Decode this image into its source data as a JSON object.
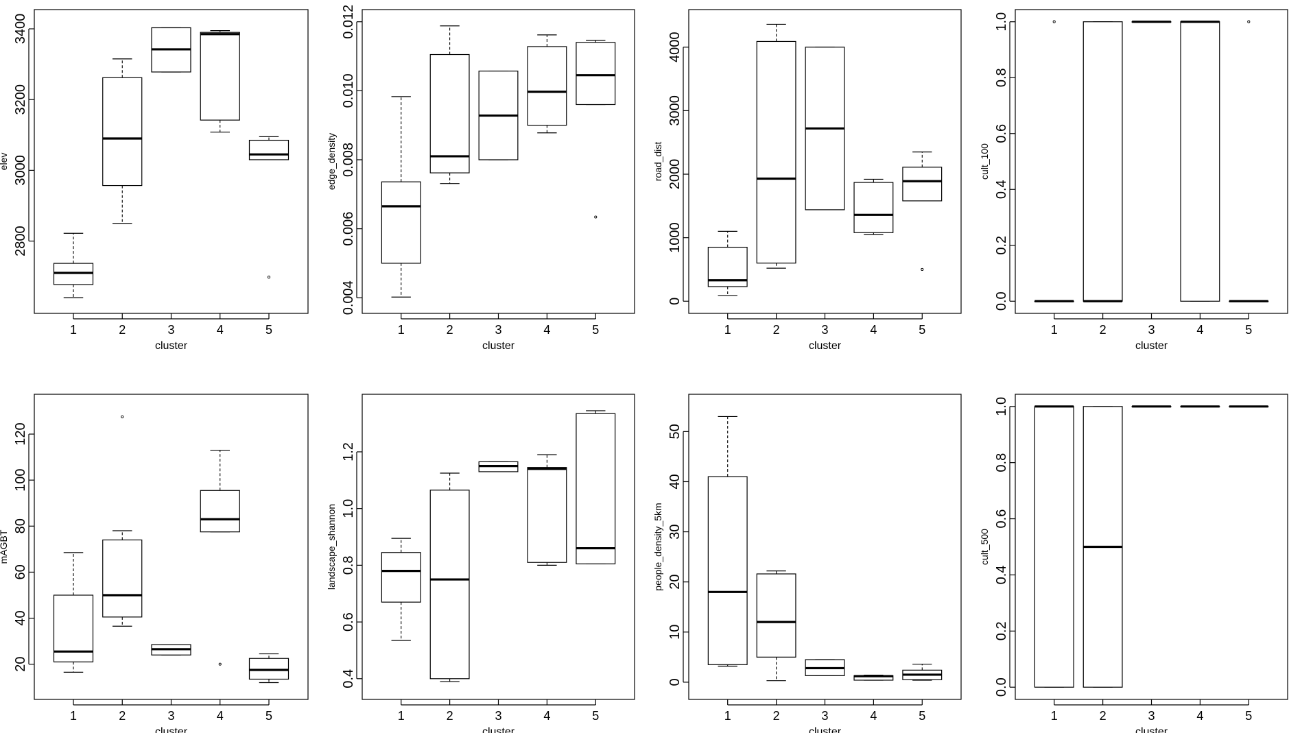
{
  "chart_data": [
    {
      "type": "boxplot",
      "xlabel": "cluster",
      "ylabel": "elev",
      "categories": [
        "1",
        "2",
        "3",
        "4",
        "5"
      ],
      "ylim": [
        2630,
        3420
      ],
      "yticks": [
        2800,
        3000,
        3200,
        3400
      ],
      "ytick_labels": [
        "2800",
        "3000",
        "3200",
        "3400"
      ],
      "boxes": [
        {
          "min": 2640,
          "q1": 2677,
          "median": 2710,
          "q3": 2737,
          "max": 2822,
          "outliers": []
        },
        {
          "min": 2850,
          "q1": 2957,
          "median": 3090,
          "q3": 3262,
          "max": 3315,
          "outliers": []
        },
        {
          "min": 3278,
          "q1": 3278,
          "median": 3342,
          "q3": 3403,
          "max": 3403,
          "outliers": []
        },
        {
          "min": 3108,
          "q1": 3142,
          "median": 3385,
          "q3": 3390,
          "max": 3395,
          "outliers": []
        },
        {
          "min": 3030,
          "q1": 3030,
          "median": 3045,
          "q3": 3085,
          "max": 3095,
          "outliers": [
            2698
          ]
        }
      ]
    },
    {
      "type": "boxplot",
      "xlabel": "cluster",
      "ylabel": "edge_density",
      "categories": [
        "1",
        "2",
        "3",
        "4",
        "5"
      ],
      "ylim": [
        0.0039,
        0.012
      ],
      "yticks": [
        0.004,
        0.006,
        0.008,
        0.01,
        0.012
      ],
      "ytick_labels": [
        "0.004",
        "0.006",
        "0.008",
        "0.010",
        "0.012"
      ],
      "boxes": [
        {
          "min": 0.00402,
          "q1": 0.005,
          "median": 0.00665,
          "q3": 0.00736,
          "max": 0.00983,
          "outliers": []
        },
        {
          "min": 0.00731,
          "q1": 0.00762,
          "median": 0.0081,
          "q3": 0.01105,
          "max": 0.01188,
          "outliers": []
        },
        {
          "min": 0.008,
          "q1": 0.008,
          "median": 0.00928,
          "q3": 0.01057,
          "max": 0.01057,
          "outliers": []
        },
        {
          "min": 0.00878,
          "q1": 0.009,
          "median": 0.00997,
          "q3": 0.01128,
          "max": 0.01162,
          "outliers": []
        },
        {
          "min": 0.0096,
          "q1": 0.0096,
          "median": 0.01045,
          "q3": 0.0114,
          "max": 0.01146,
          "outliers": [
            0.00634
          ]
        }
      ]
    },
    {
      "type": "boxplot",
      "xlabel": "cluster",
      "ylabel": "road_dist",
      "categories": [
        "1",
        "2",
        "3",
        "4",
        "5"
      ],
      "ylim": [
        0,
        4400
      ],
      "yticks": [
        0,
        1000,
        2000,
        3000,
        4000
      ],
      "ytick_labels": [
        "0",
        "1000",
        "2000",
        "3000",
        "4000"
      ],
      "boxes": [
        {
          "min": 90,
          "q1": 230,
          "median": 330,
          "q3": 850,
          "max": 1100,
          "outliers": []
        },
        {
          "min": 520,
          "q1": 600,
          "median": 1930,
          "q3": 4090,
          "max": 4360,
          "outliers": []
        },
        {
          "min": 1440,
          "q1": 1440,
          "median": 2720,
          "q3": 4000,
          "max": 4000,
          "outliers": []
        },
        {
          "min": 1050,
          "q1": 1080,
          "median": 1360,
          "q3": 1870,
          "max": 1920,
          "outliers": []
        },
        {
          "min": 1580,
          "q1": 1580,
          "median": 1890,
          "q3": 2110,
          "max": 2350,
          "outliers": [
            500
          ]
        }
      ]
    },
    {
      "type": "boxplot",
      "xlabel": "cluster",
      "ylabel": "cult_100",
      "categories": [
        "1",
        "2",
        "3",
        "4",
        "5"
      ],
      "ylim": [
        0,
        1
      ],
      "yticks": [
        0.0,
        0.2,
        0.4,
        0.6,
        0.8,
        1.0
      ],
      "ytick_labels": [
        "0.0",
        "0.2",
        "0.4",
        "0.6",
        "0.8",
        "1.0"
      ],
      "boxes": [
        {
          "min": 0,
          "q1": 0,
          "median": 0,
          "q3": 0,
          "max": 0,
          "outliers": [
            1
          ]
        },
        {
          "min": 0,
          "q1": 0,
          "median": 0,
          "q3": 1,
          "max": 1,
          "outliers": []
        },
        {
          "min": 1,
          "q1": 1,
          "median": 1,
          "q3": 1,
          "max": 1,
          "outliers": []
        },
        {
          "min": 0,
          "q1": 0,
          "median": 1,
          "q3": 1,
          "max": 1,
          "outliers": []
        },
        {
          "min": 0,
          "q1": 0,
          "median": 0,
          "q3": 0,
          "max": 0,
          "outliers": [
            1
          ]
        }
      ]
    },
    {
      "type": "boxplot",
      "xlabel": "cluster",
      "ylabel": "mAGBT",
      "categories": [
        "1",
        "2",
        "3",
        "4",
        "5"
      ],
      "ylim": [
        10,
        132
      ],
      "yticks": [
        20,
        40,
        60,
        80,
        100,
        120
      ],
      "ytick_labels": [
        "20",
        "40",
        "60",
        "80",
        "100",
        "120"
      ],
      "boxes": [
        {
          "min": 16.5,
          "q1": 21,
          "median": 25.5,
          "q3": 50,
          "max": 68.5,
          "outliers": []
        },
        {
          "min": 36.5,
          "q1": 40.5,
          "median": 50,
          "q3": 74,
          "max": 78,
          "outliers": [
            127.5
          ]
        },
        {
          "min": 24,
          "q1": 24,
          "median": 26.5,
          "q3": 28.5,
          "max": 28.5,
          "outliers": []
        },
        {
          "min": 77.5,
          "q1": 77.5,
          "median": 83,
          "q3": 95.5,
          "max": 113,
          "outliers": [
            20
          ]
        },
        {
          "min": 12,
          "q1": 13.5,
          "median": 17.5,
          "q3": 22.5,
          "max": 24.5,
          "outliers": []
        }
      ]
    },
    {
      "type": "boxplot",
      "xlabel": "cluster",
      "ylabel": "landscape_shannon",
      "categories": [
        "1",
        "2",
        "3",
        "4",
        "5"
      ],
      "ylim": [
        0.37,
        1.36
      ],
      "yticks": [
        0.4,
        0.6,
        0.8,
        1.0,
        1.2
      ],
      "ytick_labels": [
        "0.4",
        "0.6",
        "0.8",
        "1.0",
        "1.2"
      ],
      "boxes": [
        {
          "min": 0.535,
          "q1": 0.67,
          "median": 0.78,
          "q3": 0.845,
          "max": 0.895,
          "outliers": []
        },
        {
          "min": 0.39,
          "q1": 0.4,
          "median": 0.75,
          "q3": 1.065,
          "max": 1.125,
          "outliers": []
        },
        {
          "min": 1.13,
          "q1": 1.13,
          "median": 1.15,
          "q3": 1.165,
          "max": 1.165,
          "outliers": []
        },
        {
          "min": 0.8,
          "q1": 0.81,
          "median": 1.14,
          "q3": 1.145,
          "max": 1.19,
          "outliers": []
        },
        {
          "min": 0.805,
          "q1": 0.805,
          "median": 0.86,
          "q3": 1.335,
          "max": 1.345,
          "outliers": []
        }
      ]
    },
    {
      "type": "boxplot",
      "xlabel": "cluster",
      "ylabel": "people_density_5km",
      "categories": [
        "1",
        "2",
        "3",
        "4",
        "5"
      ],
      "ylim": [
        -1,
        55
      ],
      "yticks": [
        0,
        10,
        20,
        30,
        40,
        50
      ],
      "ytick_labels": [
        "0",
        "10",
        "20",
        "30",
        "40",
        "50"
      ],
      "boxes": [
        {
          "min": 3.2,
          "q1": 3.5,
          "median": 18,
          "q3": 41,
          "max": 53,
          "outliers": []
        },
        {
          "min": 0.3,
          "q1": 5,
          "median": 12,
          "q3": 21.6,
          "max": 22.2,
          "outliers": []
        },
        {
          "min": 1.3,
          "q1": 1.3,
          "median": 2.8,
          "q3": 4.5,
          "max": 4.5,
          "outliers": []
        },
        {
          "min": 0.4,
          "q1": 0.4,
          "median": 1.2,
          "q3": 1.3,
          "max": 1.4,
          "outliers": []
        },
        {
          "min": 0.4,
          "q1": 0.5,
          "median": 1.5,
          "q3": 2.4,
          "max": 3.6,
          "outliers": []
        }
      ]
    },
    {
      "type": "boxplot",
      "xlabel": "cluster",
      "ylabel": "cult_500",
      "categories": [
        "1",
        "2",
        "3",
        "4",
        "5"
      ],
      "ylim": [
        0,
        1
      ],
      "yticks": [
        0.0,
        0.2,
        0.4,
        0.6,
        0.8,
        1.0
      ],
      "ytick_labels": [
        "0.0",
        "0.2",
        "0.4",
        "0.6",
        "0.8",
        "1.0"
      ],
      "boxes": [
        {
          "min": 0,
          "q1": 0,
          "median": 1,
          "q3": 1,
          "max": 1,
          "outliers": []
        },
        {
          "min": 0,
          "q1": 0,
          "median": 0.5,
          "q3": 1,
          "max": 1,
          "outliers": []
        },
        {
          "min": 1,
          "q1": 1,
          "median": 1,
          "q3": 1,
          "max": 1,
          "outliers": []
        },
        {
          "min": 1,
          "q1": 1,
          "median": 1,
          "q3": 1,
          "max": 1,
          "outliers": []
        },
        {
          "min": 1,
          "q1": 1,
          "median": 1,
          "q3": 1,
          "max": 1,
          "outliers": []
        }
      ]
    }
  ]
}
